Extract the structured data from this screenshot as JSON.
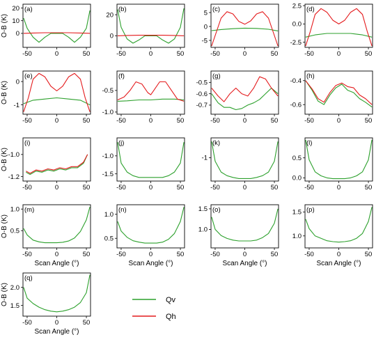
{
  "colors": {
    "qv": "#2ca02c",
    "qh": "#e41a1c",
    "axis": "#000000"
  },
  "legend": {
    "items": [
      {
        "key": "qv",
        "label": "Qv"
      },
      {
        "key": "qh",
        "label": "Qh"
      }
    ]
  },
  "chart_data": [
    {
      "panel": "(a)",
      "type": "line",
      "xlabel": "",
      "ylabel": "O-B (K)",
      "xlim": [
        -57,
        57
      ],
      "ylim": [
        -11,
        23
      ],
      "xticks": [
        -50,
        0,
        50
      ],
      "yticks": [
        0,
        10,
        20
      ],
      "series": [
        {
          "name": "Qv",
          "x": [
            -56,
            -50,
            -40,
            -30,
            -20,
            -10,
            0,
            10,
            20,
            30,
            40,
            50,
            56
          ],
          "y": [
            12,
            4,
            -3,
            -7,
            -3,
            0,
            0,
            0,
            -3,
            -7,
            -3,
            4,
            18
          ]
        },
        {
          "name": "Qh",
          "x": [
            -56,
            -40,
            -20,
            0,
            20,
            40,
            56
          ],
          "y": [
            0,
            0.3,
            0.5,
            0.5,
            0.5,
            0.3,
            0
          ]
        }
      ]
    },
    {
      "panel": "(b)",
      "type": "line",
      "xlabel": "",
      "ylabel": "",
      "xlim": [
        -57,
        57
      ],
      "ylim": [
        -11,
        30
      ],
      "xticks": [
        -50,
        0,
        50
      ],
      "yticks": [
        0,
        20
      ],
      "series": [
        {
          "name": "Qv",
          "x": [
            -56,
            -50,
            -40,
            -30,
            -20,
            -10,
            0,
            10,
            20,
            30,
            40,
            50,
            56
          ],
          "y": [
            25,
            8,
            -3,
            -7,
            -4,
            0,
            0,
            0,
            -4,
            -7,
            -3,
            8,
            26
          ]
        },
        {
          "name": "Qh",
          "x": [
            -56,
            -40,
            -20,
            0,
            20,
            40,
            56
          ],
          "y": [
            0,
            0.3,
            0.5,
            0.5,
            0.5,
            0.3,
            0
          ]
        }
      ]
    },
    {
      "panel": "(c)",
      "type": "line",
      "xlabel": "",
      "ylabel": "",
      "xlim": [
        -57,
        57
      ],
      "ylim": [
        -7.5,
        8
      ],
      "xticks": [
        -50,
        0,
        50
      ],
      "yticks": [
        -5,
        0,
        5
      ],
      "series": [
        {
          "name": "Qv",
          "x": [
            -56,
            -40,
            -20,
            0,
            20,
            40,
            56
          ],
          "y": [
            -1.5,
            -1.1,
            -0.8,
            -0.6,
            -0.7,
            -1.0,
            -1.6
          ]
        },
        {
          "name": "Qh",
          "x": [
            -56,
            -48,
            -40,
            -30,
            -20,
            -10,
            0,
            10,
            20,
            30,
            40,
            48,
            56
          ],
          "y": [
            -7,
            -2,
            3,
            5.3,
            4.5,
            1.8,
            0.8,
            2,
            4.5,
            5.3,
            3,
            -2,
            -7
          ]
        }
      ]
    },
    {
      "panel": "(d)",
      "type": "line",
      "xlabel": "",
      "ylabel": "",
      "xlim": [
        -57,
        57
      ],
      "ylim": [
        -3.2,
        2.7
      ],
      "xticks": [
        -50,
        0,
        50
      ],
      "yticks": [
        -2.5,
        0.0,
        2.5
      ],
      "series": [
        {
          "name": "Qv",
          "x": [
            -56,
            -40,
            -20,
            0,
            20,
            40,
            56
          ],
          "y": [
            -1.8,
            -1.5,
            -1.3,
            -1.3,
            -1.3,
            -1.5,
            -1.8
          ]
        },
        {
          "name": "Qh",
          "x": [
            -56,
            -48,
            -40,
            -30,
            -20,
            -10,
            0,
            10,
            20,
            30,
            40,
            48,
            56
          ],
          "y": [
            -3,
            -1,
            1.3,
            2.1,
            1.6,
            0.5,
            0,
            0.5,
            1.6,
            2.1,
            1.3,
            -1,
            -3
          ]
        }
      ]
    },
    {
      "panel": "(e)",
      "type": "line",
      "xlabel": "",
      "ylabel": "O-B (K)",
      "xlim": [
        -57,
        57
      ],
      "ylim": [
        -1.4,
        0.45
      ],
      "xticks": [
        -50,
        0,
        50
      ],
      "yticks": [
        -1,
        0
      ],
      "series": [
        {
          "name": "Qv",
          "x": [
            -56,
            -40,
            -20,
            0,
            20,
            40,
            56
          ],
          "y": [
            -0.95,
            -0.8,
            -0.75,
            -0.7,
            -0.75,
            -0.8,
            -1.0
          ]
        },
        {
          "name": "Qh",
          "x": [
            -56,
            -48,
            -40,
            -30,
            -20,
            -10,
            0,
            10,
            20,
            30,
            40,
            48,
            56
          ],
          "y": [
            -1.3,
            -0.7,
            0.1,
            0.35,
            0.2,
            -0.2,
            -0.4,
            -0.2,
            0.2,
            0.35,
            0.1,
            -0.7,
            -1.3
          ]
        }
      ]
    },
    {
      "panel": "(f)",
      "type": "line",
      "xlabel": "",
      "ylabel": "",
      "xlim": [
        -57,
        57
      ],
      "ylim": [
        -1.05,
        -0.05
      ],
      "xticks": [
        -50,
        0,
        50
      ],
      "yticks": [
        -1.0,
        -0.5
      ],
      "series": [
        {
          "name": "Qv",
          "x": [
            -56,
            -40,
            -20,
            0,
            20,
            40,
            56
          ],
          "y": [
            -0.75,
            -0.74,
            -0.72,
            -0.72,
            -0.7,
            -0.7,
            -0.72
          ]
        },
        {
          "name": "Qh",
          "x": [
            -56,
            -45,
            -35,
            -25,
            -15,
            -5,
            0,
            5,
            15,
            25,
            35,
            45,
            56
          ],
          "y": [
            -0.72,
            -0.65,
            -0.5,
            -0.3,
            -0.35,
            -0.55,
            -0.6,
            -0.5,
            -0.3,
            -0.3,
            -0.5,
            -0.7,
            -0.75
          ]
        }
      ]
    },
    {
      "panel": "(g)",
      "type": "line",
      "xlabel": "",
      "ylabel": "",
      "xlim": [
        -57,
        57
      ],
      "ylim": [
        -0.78,
        -0.4
      ],
      "xticks": [
        -50,
        0,
        50
      ],
      "yticks": [
        -0.7,
        -0.6,
        -0.5
      ],
      "series": [
        {
          "name": "Qv",
          "x": [
            -56,
            -45,
            -35,
            -25,
            -15,
            -5,
            5,
            15,
            25,
            35,
            45,
            56
          ],
          "y": [
            -0.6,
            -0.68,
            -0.72,
            -0.72,
            -0.74,
            -0.73,
            -0.7,
            -0.68,
            -0.65,
            -0.6,
            -0.55,
            -0.6
          ]
        },
        {
          "name": "Qh",
          "x": [
            -56,
            -45,
            -35,
            -25,
            -15,
            -5,
            5,
            15,
            25,
            35,
            45,
            56
          ],
          "y": [
            -0.55,
            -0.62,
            -0.67,
            -0.6,
            -0.55,
            -0.6,
            -0.62,
            -0.55,
            -0.45,
            -0.47,
            -0.55,
            -0.62
          ]
        }
      ]
    },
    {
      "panel": "(h)",
      "type": "line",
      "xlabel": "",
      "ylabel": "",
      "xlim": [
        -57,
        57
      ],
      "ylim": [
        -0.68,
        -0.32
      ],
      "xticks": [
        -50,
        0,
        50
      ],
      "yticks": [
        -0.6,
        -0.4
      ],
      "series": [
        {
          "name": "Qv",
          "x": [
            -56,
            -45,
            -35,
            -25,
            -15,
            -5,
            5,
            15,
            25,
            35,
            45,
            56
          ],
          "y": [
            -0.4,
            -0.48,
            -0.57,
            -0.6,
            -0.52,
            -0.46,
            -0.43,
            -0.48,
            -0.5,
            -0.55,
            -0.58,
            -0.62
          ]
        },
        {
          "name": "Qh",
          "x": [
            -56,
            -45,
            -35,
            -25,
            -15,
            -5,
            5,
            15,
            25,
            35,
            45,
            56
          ],
          "y": [
            -0.4,
            -0.47,
            -0.55,
            -0.58,
            -0.5,
            -0.44,
            -0.42,
            -0.45,
            -0.46,
            -0.52,
            -0.55,
            -0.6
          ]
        }
      ]
    },
    {
      "panel": "(i)",
      "type": "line",
      "xlabel": "",
      "ylabel": "O-B (K)",
      "xlim": [
        -57,
        57
      ],
      "ylim": [
        -1.24,
        -0.85
      ],
      "xticks": [
        -50,
        0,
        50
      ],
      "yticks": [
        -1.2,
        -1.0
      ],
      "series": [
        {
          "name": "Qv",
          "x": [
            -52,
            -45,
            -35,
            -25,
            -15,
            -5,
            5,
            15,
            25,
            35,
            45,
            52
          ],
          "y": [
            -1.16,
            -1.18,
            -1.15,
            -1.16,
            -1.14,
            -1.15,
            -1.13,
            -1.14,
            -1.12,
            -1.12,
            -1.08,
            -1.0
          ]
        },
        {
          "name": "Qh",
          "x": [
            -52,
            -45,
            -35,
            -25,
            -15,
            -5,
            5,
            15,
            25,
            35,
            45,
            52
          ],
          "y": [
            -1.15,
            -1.17,
            -1.14,
            -1.15,
            -1.13,
            -1.14,
            -1.12,
            -1.13,
            -1.11,
            -1.11,
            -1.07,
            -1.0
          ]
        }
      ]
    },
    {
      "panel": "(j)",
      "type": "line",
      "xlabel": "",
      "ylabel": "",
      "xlim": [
        -57,
        57
      ],
      "ylim": [
        -1.7,
        -0.5
      ],
      "xticks": [
        -50,
        0,
        50
      ],
      "yticks": [
        -1.5,
        -1.0
      ],
      "series": [
        {
          "name": "Qv",
          "x": [
            -56,
            -50,
            -40,
            -30,
            -20,
            -10,
            0,
            10,
            20,
            30,
            40,
            50,
            56
          ],
          "y": [
            -0.62,
            -1.2,
            -1.45,
            -1.55,
            -1.6,
            -1.6,
            -1.6,
            -1.6,
            -1.6,
            -1.55,
            -1.45,
            -1.2,
            -0.62
          ]
        }
      ]
    },
    {
      "panel": "(k)",
      "type": "line",
      "xlabel": "",
      "ylabel": "",
      "xlim": [
        -57,
        57
      ],
      "ylim": [
        -1.65,
        -0.45
      ],
      "xticks": [
        -50,
        0,
        50
      ],
      "yticks": [
        -1
      ],
      "series": [
        {
          "name": "Qv",
          "x": [
            -56,
            -50,
            -40,
            -30,
            -20,
            -10,
            0,
            10,
            20,
            30,
            40,
            50,
            56
          ],
          "y": [
            -0.55,
            -1.1,
            -1.4,
            -1.5,
            -1.55,
            -1.58,
            -1.58,
            -1.58,
            -1.55,
            -1.5,
            -1.4,
            -1.1,
            -0.55
          ]
        }
      ]
    },
    {
      "panel": "(l)",
      "type": "line",
      "xlabel": "",
      "ylabel": "",
      "xlim": [
        -57,
        57
      ],
      "ylim": [
        -0.08,
        1.0
      ],
      "xticks": [
        -50,
        0,
        50
      ],
      "yticks": [
        0.0,
        0.5
      ],
      "series": [
        {
          "name": "Qv",
          "x": [
            -56,
            -50,
            -40,
            -30,
            -20,
            -10,
            0,
            10,
            20,
            30,
            40,
            50,
            56
          ],
          "y": [
            0.95,
            0.45,
            0.15,
            0.05,
            0.0,
            -0.02,
            -0.02,
            -0.02,
            0.0,
            0.05,
            0.15,
            0.45,
            0.95
          ]
        }
      ]
    },
    {
      "panel": "(m)",
      "type": "line",
      "xlabel": "Scan Angle (°)",
      "ylabel": "O-B (K)",
      "xlim": [
        -57,
        57
      ],
      "ylim": [
        0.1,
        1.1
      ],
      "xticks": [
        -50,
        0,
        50
      ],
      "yticks": [
        0.5,
        1.0
      ],
      "series": [
        {
          "name": "Qv",
          "x": [
            -56,
            -50,
            -40,
            -30,
            -20,
            -10,
            0,
            10,
            20,
            30,
            40,
            50,
            56
          ],
          "y": [
            0.55,
            0.4,
            0.28,
            0.24,
            0.22,
            0.22,
            0.22,
            0.23,
            0.26,
            0.33,
            0.48,
            0.75,
            1.05
          ]
        }
      ]
    },
    {
      "panel": "(n)",
      "type": "line",
      "xlabel": "Scan Angle (°)",
      "ylabel": "",
      "xlim": [
        -57,
        57
      ],
      "ylim": [
        0.3,
        1.2
      ],
      "xticks": [
        -50,
        0,
        50
      ],
      "yticks": [
        0.5,
        1.0
      ],
      "series": [
        {
          "name": "Qv",
          "x": [
            -56,
            -50,
            -40,
            -30,
            -20,
            -10,
            0,
            10,
            20,
            30,
            40,
            50,
            56
          ],
          "y": [
            0.85,
            0.65,
            0.52,
            0.45,
            0.42,
            0.4,
            0.4,
            0.4,
            0.42,
            0.48,
            0.6,
            0.85,
            1.15
          ]
        }
      ]
    },
    {
      "panel": "(o)",
      "type": "line",
      "xlabel": "Scan Angle (°)",
      "ylabel": "",
      "xlim": [
        -57,
        57
      ],
      "ylim": [
        0.55,
        1.6
      ],
      "xticks": [
        -50,
        0,
        50
      ],
      "yticks": [
        1.0,
        1.5
      ],
      "series": [
        {
          "name": "Qv",
          "x": [
            -56,
            -50,
            -40,
            -30,
            -20,
            -10,
            0,
            10,
            20,
            30,
            40,
            50,
            56
          ],
          "y": [
            1.3,
            1.0,
            0.85,
            0.78,
            0.74,
            0.72,
            0.72,
            0.72,
            0.74,
            0.8,
            0.9,
            1.15,
            1.5
          ]
        }
      ]
    },
    {
      "panel": "(p)",
      "type": "line",
      "xlabel": "Scan Angle (°)",
      "ylabel": "",
      "xlim": [
        -57,
        57
      ],
      "ylim": [
        0.75,
        1.65
      ],
      "xticks": [
        -50,
        0,
        50
      ],
      "yticks": [
        1.0,
        1.5
      ],
      "series": [
        {
          "name": "Qv",
          "x": [
            -56,
            -50,
            -40,
            -30,
            -20,
            -10,
            0,
            10,
            20,
            30,
            40,
            50,
            56
          ],
          "y": [
            1.35,
            1.15,
            1.0,
            0.95,
            0.9,
            0.88,
            0.87,
            0.88,
            0.9,
            0.95,
            1.05,
            1.3,
            1.6
          ]
        }
      ]
    },
    {
      "panel": "(q)",
      "type": "line",
      "xlabel": "Scan Angle (°)",
      "ylabel": "O-B (K)",
      "xlim": [
        -57,
        57
      ],
      "ylim": [
        1.2,
        2.4
      ],
      "xticks": [
        -50,
        0,
        50
      ],
      "yticks": [
        1.5,
        2.0
      ],
      "series": [
        {
          "name": "Qv",
          "x": [
            -56,
            -50,
            -40,
            -30,
            -20,
            -10,
            0,
            10,
            20,
            30,
            40,
            50,
            56
          ],
          "y": [
            2.0,
            1.7,
            1.55,
            1.45,
            1.38,
            1.34,
            1.32,
            1.34,
            1.38,
            1.45,
            1.58,
            1.85,
            2.35
          ]
        }
      ]
    }
  ]
}
